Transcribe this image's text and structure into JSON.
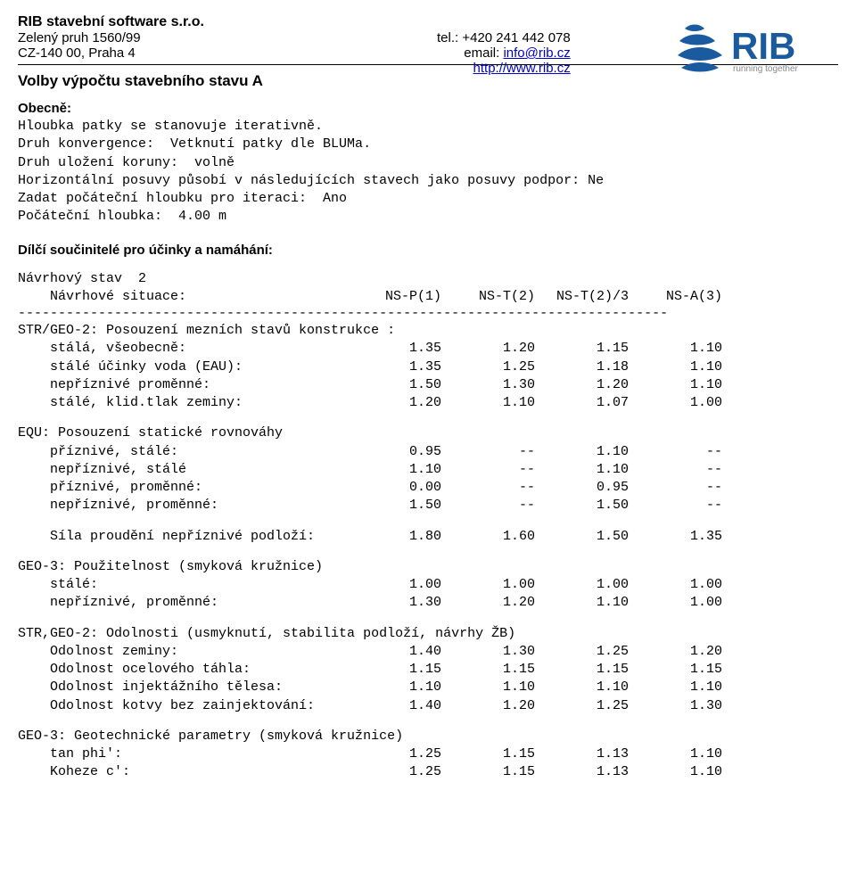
{
  "header": {
    "company": "RIB stavební software s.r.o.",
    "addr1": "Zelený pruh 1560/99",
    "addr2": "CZ-140 00, Praha 4",
    "tel": "tel.: +420 241 442 078",
    "email_label": "email: ",
    "email": "info@rib.cz",
    "url": "http://www.rib.cz",
    "logo_text": "RIB",
    "logo_tagline": "running together"
  },
  "title_main": "Volby výpočtu stavebního stavu A",
  "section_general": "Obecně:",
  "general_lines": "Hloubka patky se stanovuje iterativně.\nDruh konvergence:  Vetknutí patky dle BLUMa.\nDruh uložení koruny:  volně\nHorizontální posuvy působí v následujících stavech jako posuvy podpor: Ne\nZadat počáteční hloubku pro iteraci:  Ano\nPočáteční hloubka:  4.00 m",
  "section_partial": "Dílčí součinitelé pro účinky a namáhání:",
  "design_state_line": "Návrhový stav  2",
  "design_situations_label": "    Návrhové situace:",
  "col_headers": [
    "NS-P(1)",
    "NS-T(2)",
    "NS-T(2)/3",
    "NS-A(3)"
  ],
  "dash_line": "---------------------------------------------------------------------------------",
  "blocks": [
    {
      "heading": "STR/GEO-2: Posouzení mezních stavů konstrukce :",
      "rows": [
        {
          "label": "    stálá, všeobecně:",
          "v": [
            "1.35",
            "1.20",
            "1.15",
            "1.10"
          ]
        },
        {
          "label": "    stálé účinky voda (EAU):",
          "v": [
            "1.35",
            "1.25",
            "1.18",
            "1.10"
          ]
        },
        {
          "label": "    nepříznivé proměnné:",
          "v": [
            "1.50",
            "1.30",
            "1.20",
            "1.10"
          ]
        },
        {
          "label": "    stálé, klid.tlak zeminy:",
          "v": [
            "1.20",
            "1.10",
            "1.07",
            "1.00"
          ]
        }
      ]
    },
    {
      "heading": "EQU: Posouzení statické rovnováhy",
      "rows": [
        {
          "label": "    příznivé, stálé:",
          "v": [
            "0.95",
            "--",
            "1.10",
            "--"
          ]
        },
        {
          "label": "    nepříznivé, stálé",
          "v": [
            "1.10",
            "--",
            "1.10",
            "--"
          ]
        },
        {
          "label": "    příznivé, proměnné:",
          "v": [
            "0.00",
            "--",
            "0.95",
            "--"
          ]
        },
        {
          "label": "    nepříznivé, proměnné:",
          "v": [
            "1.50",
            "--",
            "1.50",
            "--"
          ]
        }
      ],
      "tail": {
        "label": "    Síla proudění nepříznivé podloží:",
        "v": [
          "1.80",
          "1.60",
          "1.50",
          "1.35"
        ]
      }
    },
    {
      "heading": "GEO-3: Použitelnost (smyková kružnice)",
      "rows": [
        {
          "label": "    stálé:",
          "v": [
            "1.00",
            "1.00",
            "1.00",
            "1.00"
          ]
        },
        {
          "label": "    nepříznivé, proměnné:",
          "v": [
            "1.30",
            "1.20",
            "1.10",
            "1.00"
          ]
        }
      ]
    },
    {
      "heading": "STR,GEO-2: Odolnosti (usmyknutí, stabilita podloží, návrhy ŽB)",
      "rows": [
        {
          "label": "    Odolnost zeminy:",
          "v": [
            "1.40",
            "1.30",
            "1.25",
            "1.20"
          ]
        },
        {
          "label": "    Odolnost ocelového táhla:",
          "v": [
            "1.15",
            "1.15",
            "1.15",
            "1.15"
          ]
        },
        {
          "label": "    Odolnost injektážního tělesa:",
          "v": [
            "1.10",
            "1.10",
            "1.10",
            "1.10"
          ]
        },
        {
          "label": "    Odolnost kotvy bez zainjektování:",
          "v": [
            "1.40",
            "1.20",
            "1.25",
            "1.30"
          ]
        }
      ]
    },
    {
      "heading": "GEO-3: Geotechnické parametry (smyková kružnice)",
      "rows": [
        {
          "label": "    tan phi':",
          "v": [
            "1.25",
            "1.15",
            "1.13",
            "1.10"
          ]
        },
        {
          "label": "    Koheze c':",
          "v": [
            "1.25",
            "1.15",
            "1.13",
            "1.10"
          ]
        }
      ]
    }
  ]
}
